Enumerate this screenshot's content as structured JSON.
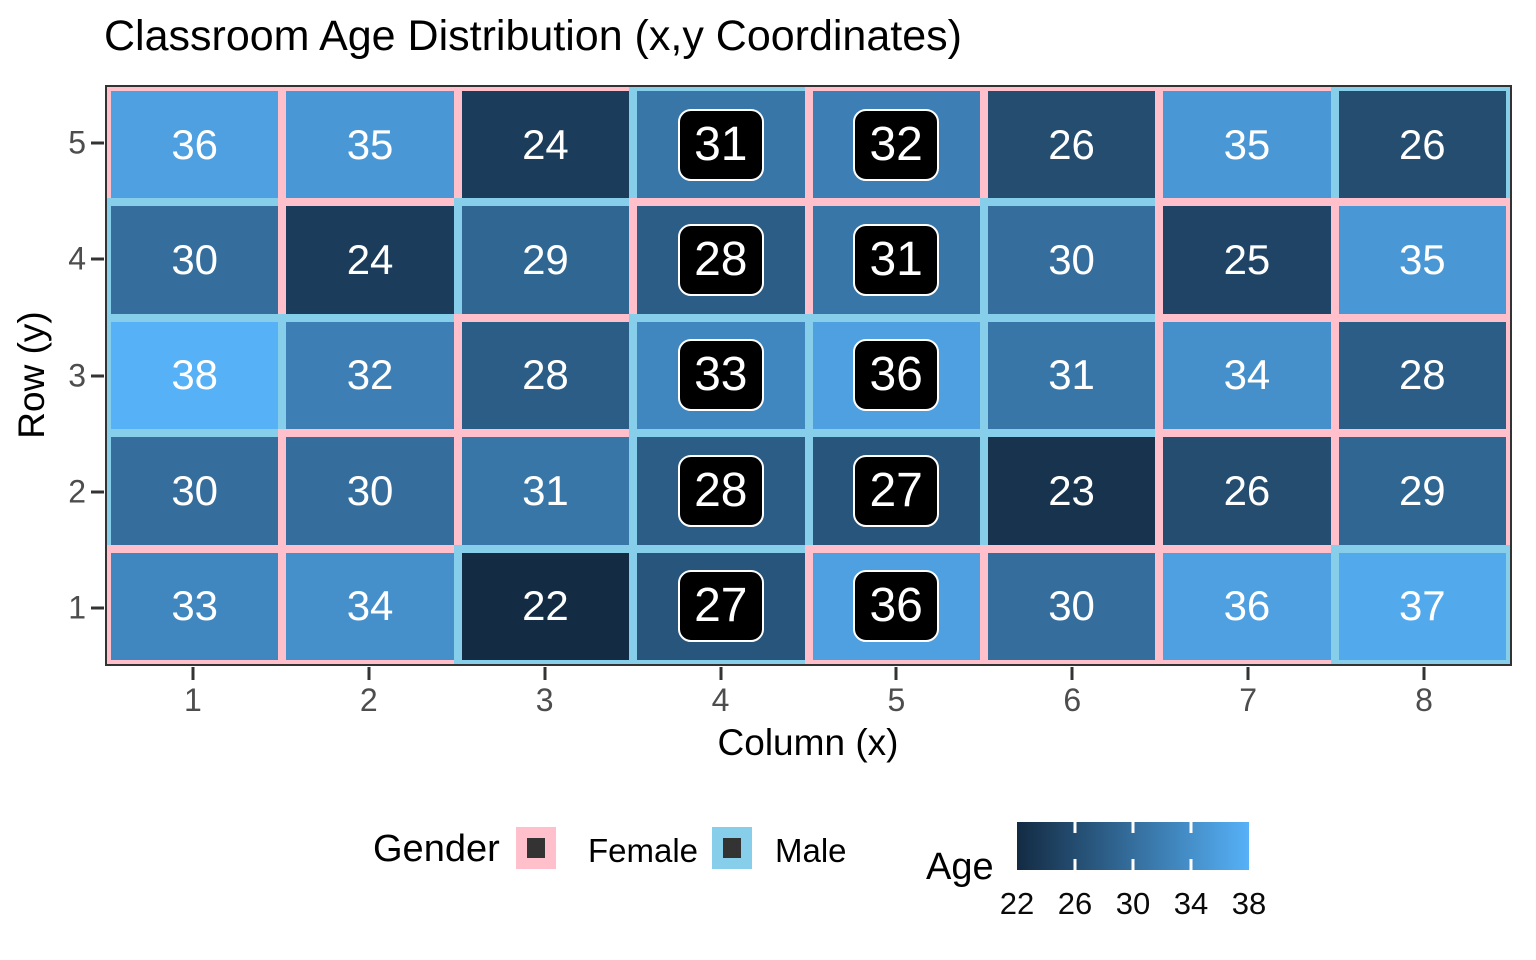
{
  "title": "Classroom Age Distribution (x,y Coordinates)",
  "axes": {
    "x_label": "Column (x)",
    "y_label": "Row (y)",
    "x_ticks": [
      "1",
      "2",
      "3",
      "4",
      "5",
      "6",
      "7",
      "8"
    ],
    "y_ticks": [
      "5",
      "4",
      "3",
      "2",
      "1"
    ]
  },
  "legend": {
    "gender_title": "Gender",
    "female_label": "Female",
    "male_label": "Male",
    "age_title": "Age",
    "age_ticks": [
      "22",
      "26",
      "30",
      "34",
      "38"
    ]
  },
  "colors": {
    "female_border": "#FFC0CB",
    "male_border": "#87CEEB",
    "fill_low": "#132B43",
    "fill_high": "#56B1F7",
    "tile_text": "#FFFFFF",
    "highlight_bg": "#000000",
    "highlight_text": "#FFFFFF",
    "panel_border": "#333333",
    "tick_label": "#4D4D4D",
    "legend_key_inner": "#333333"
  },
  "chart_data": {
    "type": "heatmap",
    "title": "Classroom Age Distribution (x,y Coordinates)",
    "xlabel": "Column (x)",
    "ylabel": "Row (y)",
    "x_values": [
      1,
      2,
      3,
      4,
      5,
      6,
      7,
      8
    ],
    "y_values": [
      5,
      4,
      3,
      2,
      1
    ],
    "fill_variable": "Age",
    "fill_range": [
      22,
      38
    ],
    "colorbar_ticks": [
      22,
      26,
      30,
      34,
      38
    ],
    "border_variable": "Gender",
    "border_levels": [
      "Female",
      "Male"
    ],
    "legend_position": "bottom",
    "cells": [
      {
        "x": 1,
        "y": 5,
        "age": 36,
        "gender": "Female",
        "highlighted": false
      },
      {
        "x": 2,
        "y": 5,
        "age": 35,
        "gender": "Female",
        "highlighted": false
      },
      {
        "x": 3,
        "y": 5,
        "age": 24,
        "gender": "Female",
        "highlighted": false
      },
      {
        "x": 4,
        "y": 5,
        "age": 31,
        "gender": "Male",
        "highlighted": true
      },
      {
        "x": 5,
        "y": 5,
        "age": 32,
        "gender": "Female",
        "highlighted": true
      },
      {
        "x": 6,
        "y": 5,
        "age": 26,
        "gender": "Female",
        "highlighted": false
      },
      {
        "x": 7,
        "y": 5,
        "age": 35,
        "gender": "Female",
        "highlighted": false
      },
      {
        "x": 8,
        "y": 5,
        "age": 26,
        "gender": "Male",
        "highlighted": false
      },
      {
        "x": 1,
        "y": 4,
        "age": 30,
        "gender": "Male",
        "highlighted": false
      },
      {
        "x": 2,
        "y": 4,
        "age": 24,
        "gender": "Female",
        "highlighted": false
      },
      {
        "x": 3,
        "y": 4,
        "age": 29,
        "gender": "Male",
        "highlighted": false
      },
      {
        "x": 4,
        "y": 4,
        "age": 28,
        "gender": "Female",
        "highlighted": true
      },
      {
        "x": 5,
        "y": 4,
        "age": 31,
        "gender": "Female",
        "highlighted": true
      },
      {
        "x": 6,
        "y": 4,
        "age": 30,
        "gender": "Male",
        "highlighted": false
      },
      {
        "x": 7,
        "y": 4,
        "age": 25,
        "gender": "Female",
        "highlighted": false
      },
      {
        "x": 8,
        "y": 4,
        "age": 35,
        "gender": "Female",
        "highlighted": false
      },
      {
        "x": 1,
        "y": 3,
        "age": 38,
        "gender": "Male",
        "highlighted": false
      },
      {
        "x": 2,
        "y": 3,
        "age": 32,
        "gender": "Male",
        "highlighted": false
      },
      {
        "x": 3,
        "y": 3,
        "age": 28,
        "gender": "Female",
        "highlighted": false
      },
      {
        "x": 4,
        "y": 3,
        "age": 33,
        "gender": "Male",
        "highlighted": true
      },
      {
        "x": 5,
        "y": 3,
        "age": 36,
        "gender": "Male",
        "highlighted": true
      },
      {
        "x": 6,
        "y": 3,
        "age": 31,
        "gender": "Male",
        "highlighted": false
      },
      {
        "x": 7,
        "y": 3,
        "age": 34,
        "gender": "Female",
        "highlighted": false
      },
      {
        "x": 8,
        "y": 3,
        "age": 28,
        "gender": "Female",
        "highlighted": false
      },
      {
        "x": 1,
        "y": 2,
        "age": 30,
        "gender": "Male",
        "highlighted": false
      },
      {
        "x": 2,
        "y": 2,
        "age": 30,
        "gender": "Female",
        "highlighted": false
      },
      {
        "x": 3,
        "y": 2,
        "age": 31,
        "gender": "Female",
        "highlighted": false
      },
      {
        "x": 4,
        "y": 2,
        "age": 28,
        "gender": "Male",
        "highlighted": true
      },
      {
        "x": 5,
        "y": 2,
        "age": 27,
        "gender": "Male",
        "highlighted": true
      },
      {
        "x": 6,
        "y": 2,
        "age": 23,
        "gender": "Male",
        "highlighted": false
      },
      {
        "x": 7,
        "y": 2,
        "age": 26,
        "gender": "Female",
        "highlighted": false
      },
      {
        "x": 8,
        "y": 2,
        "age": 29,
        "gender": "Female",
        "highlighted": false
      },
      {
        "x": 1,
        "y": 1,
        "age": 33,
        "gender": "Female",
        "highlighted": false
      },
      {
        "x": 2,
        "y": 1,
        "age": 34,
        "gender": "Female",
        "highlighted": false
      },
      {
        "x": 3,
        "y": 1,
        "age": 22,
        "gender": "Male",
        "highlighted": false
      },
      {
        "x": 4,
        "y": 1,
        "age": 27,
        "gender": "Male",
        "highlighted": true
      },
      {
        "x": 5,
        "y": 1,
        "age": 36,
        "gender": "Female",
        "highlighted": true
      },
      {
        "x": 6,
        "y": 1,
        "age": 30,
        "gender": "Female",
        "highlighted": false
      },
      {
        "x": 7,
        "y": 1,
        "age": 36,
        "gender": "Female",
        "highlighted": false
      },
      {
        "x": 8,
        "y": 1,
        "age": 37,
        "gender": "Male",
        "highlighted": false
      }
    ]
  }
}
